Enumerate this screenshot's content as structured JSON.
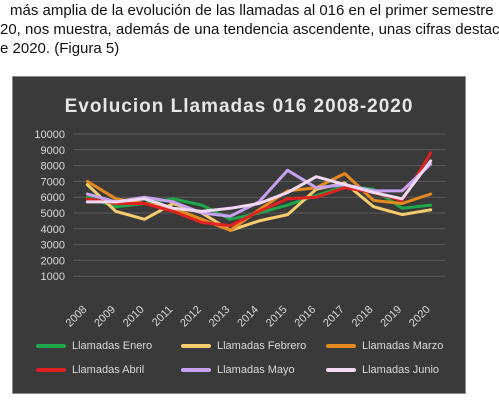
{
  "document": {
    "lines": [
      "más amplia de la evolución de las llamadas al 016 en el primer semestre",
      "20, nos muestra, además de una tendencia ascendente, unas cifras destac",
      "e 2020. (Figura 5)"
    ]
  },
  "chart_data": {
    "type": "line",
    "title": "Evolucion Llamadas 016 2008-2020",
    "xlabel": "",
    "ylabel": "",
    "x": [
      "2008",
      "2009",
      "2010",
      "2011",
      "2012",
      "2013",
      "2014",
      "2015",
      "2016",
      "2017",
      "2018",
      "2019",
      "2020"
    ],
    "yticks": [
      "1000",
      "2000",
      "3000",
      "4000",
      "5000",
      "6000",
      "7000",
      "8000",
      "9000",
      "10000"
    ],
    "ylim": [
      0,
      10000
    ],
    "grid": true,
    "legend_position": "bottom",
    "series": [
      {
        "name": "Llamadas Enero",
        "color": "#1fa64a",
        "values": [
          6000,
          5400,
          5600,
          5900,
          5500,
          4600,
          5000,
          5500,
          6100,
          6700,
          6500,
          5300,
          5500
        ]
      },
      {
        "name": "Llamadas Febrero",
        "color": "#f5cc6e",
        "values": [
          6800,
          5100,
          4600,
          5600,
          5000,
          3900,
          4500,
          4900,
          6500,
          6900,
          5400,
          4900,
          5200
        ]
      },
      {
        "name": "Llamadas Marzo",
        "color": "#e58a1f",
        "values": [
          7000,
          5900,
          5600,
          5300,
          4600,
          3900,
          5200,
          6400,
          6600,
          7500,
          5800,
          5600,
          6200
        ]
      },
      {
        "name": "Llamadas Abril",
        "color": "#e02121",
        "values": [
          5900,
          5600,
          5600,
          5100,
          4400,
          4200,
          5100,
          5900,
          6000,
          6600,
          6300,
          5800,
          8800
        ]
      },
      {
        "name": "Llamadas Mayo",
        "color": "#c6a2f0",
        "values": [
          6200,
          5700,
          6000,
          5700,
          5000,
          4800,
          5700,
          7700,
          6600,
          6800,
          6400,
          6400,
          8100
        ]
      },
      {
        "name": "Llamadas Junio",
        "color": "#f2d8f2",
        "values": [
          5700,
          5700,
          5900,
          5300,
          5100,
          5300,
          5600,
          6300,
          7300,
          6800,
          6300,
          5900,
          8300
        ]
      }
    ]
  }
}
